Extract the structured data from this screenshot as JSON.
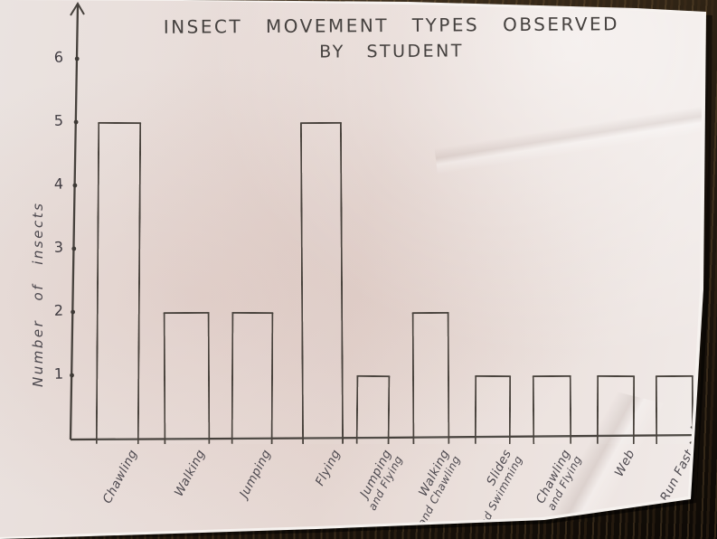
{
  "chart_data": {
    "type": "bar",
    "title": "INSECT MOVEMENT TYPES OBSERVED BY STUDENT",
    "title_line1": "INSECT MOVEMENT TYPES OBSERVED",
    "title_line2": "BY STUDENT",
    "xlabel": "",
    "ylabel": "Number of insects",
    "ylim": [
      0,
      6
    ],
    "ytick_labels": [
      "1",
      "2",
      "3",
      "4",
      "5",
      "6"
    ],
    "categories": [
      "Chawling",
      "Walking",
      "Jumping",
      "Flying",
      "Jumping and Flying",
      "Walking and Chawling",
      "Slides and Swimming",
      "Chawling and Flying",
      "Web",
      "Run Fast"
    ],
    "category_lines": [
      [
        "Chawling"
      ],
      [
        "Walking"
      ],
      [
        "Jumping"
      ],
      [
        "Flying"
      ],
      [
        "Jumping",
        "and Flying"
      ],
      [
        "Walking",
        "and Chawling"
      ],
      [
        "Slides",
        "and Swimming"
      ],
      [
        "Chawling",
        "and Flying"
      ],
      [
        "Web"
      ],
      [
        "Run Fast"
      ]
    ],
    "values": [
      5,
      2,
      2,
      5,
      1,
      2,
      1,
      1,
      1,
      1
    ],
    "grid": false,
    "legend_position": "none",
    "ink_color": "#49433d",
    "paper_color": "#e8dcd8",
    "table_color": "#2c2012"
  }
}
